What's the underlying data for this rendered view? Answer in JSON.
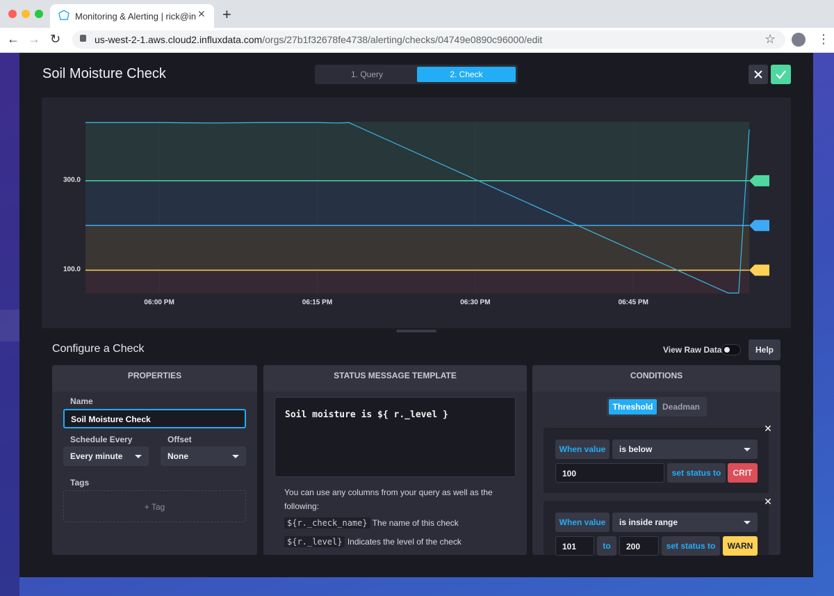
{
  "browser": {
    "tab_title": "Monitoring & Alerting | rick@in",
    "url_host": "us-west-2-1.aws.cloud2.influxdata.com",
    "url_path": "/orgs/27b1f32678fe4738/alerting/checks/04749e0890c96000/edit"
  },
  "header": {
    "title": "Soil Moisture Check",
    "steps": [
      "1. Query",
      "2. Check"
    ]
  },
  "chart_data": {
    "type": "line",
    "x": [
      "05:53 PM",
      "06:00 PM",
      "06:05 PM",
      "06:10 PM",
      "06:15 PM",
      "06:17 PM",
      "06:18 PM",
      "06:54 PM",
      "06:55 PM",
      "06:56 PM"
    ],
    "series": [
      {
        "color": "#3cb8e6",
        "values": [
          430,
          430,
          429,
          430,
          430,
          429,
          430,
          49,
          49,
          415
        ]
      }
    ],
    "xlim": [
      "05:53 PM",
      "06:56 PM"
    ],
    "ylim": [
      48,
      432
    ],
    "xticks": [
      "06:00 PM",
      "06:15 PM",
      "06:30 PM",
      "06:45 PM"
    ],
    "yticks": [
      {
        "value": 100,
        "label": "100.0"
      },
      {
        "value": 300,
        "label": "300.0"
      }
    ],
    "grid": true,
    "thresholds": [
      {
        "value": 300,
        "color": "#4ed8a0"
      },
      {
        "value": 200,
        "color": "#3fa9f5"
      },
      {
        "value": 100,
        "color": "#ffd255"
      }
    ]
  },
  "configure": {
    "title": "Configure a Check",
    "view_raw": "View Raw Data",
    "help": "Help"
  },
  "properties": {
    "heading": "PROPERTIES",
    "name_label": "Name",
    "name_value": "Soil Moisture Check",
    "schedule_label": "Schedule Every",
    "schedule_value": "Every minute",
    "offset_label": "Offset",
    "offset_value": "None",
    "tags_label": "Tags",
    "add_tag": "+ Tag"
  },
  "status_message": {
    "heading": "STATUS MESSAGE TEMPLATE",
    "template": "Soil moisture is ${ r._level }",
    "help": "You can use any columns from your query as well as the following:",
    "vars": [
      {
        "code": "${r._check_name}",
        "desc": "The name of this check"
      },
      {
        "code": "${r._level}",
        "desc": "Indicates the level of the check"
      }
    ]
  },
  "conditions": {
    "heading": "CONDITIONS",
    "tabs": [
      "Threshold",
      "Deadman"
    ],
    "rules": [
      {
        "when": "When value",
        "op": "is below",
        "value": 100,
        "set": "set status to",
        "level": "CRIT"
      },
      {
        "when": "When value",
        "op": "is inside range",
        "min": 101,
        "to": "to",
        "max": 200,
        "set": "set status to",
        "level": "WARN"
      }
    ]
  }
}
